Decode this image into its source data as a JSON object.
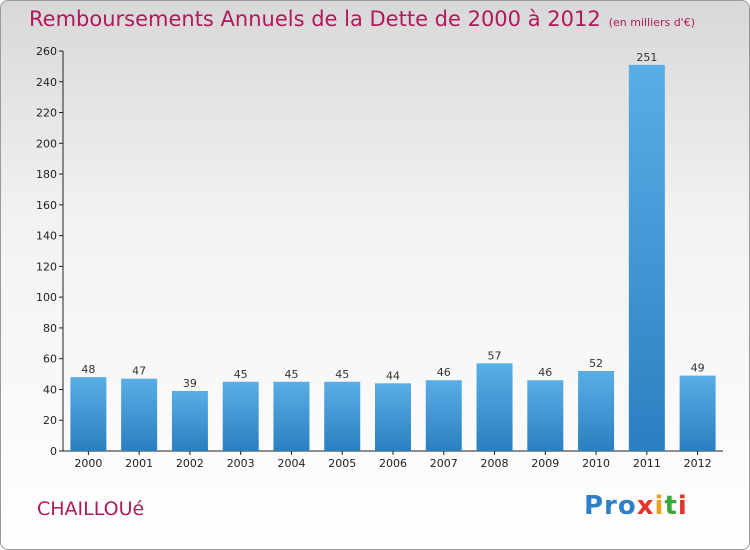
{
  "header": {
    "title": "Remboursements Annuels de la Dette de 2000 à 2012",
    "subtitle": "(en milliers d'€)"
  },
  "footer": {
    "commune": "CHAILLOUé",
    "logo": "Proxiti"
  },
  "colors": {
    "bar_light": "#5aaee6",
    "bar_dark": "#2a7fc0",
    "title": "#b1195c"
  },
  "chart_data": {
    "type": "bar",
    "title": "Remboursements Annuels de la Dette de 2000 à 2012",
    "subtitle": "(en milliers d'€)",
    "categories": [
      "2000",
      "2001",
      "2002",
      "2003",
      "2004",
      "2005",
      "2006",
      "2007",
      "2008",
      "2009",
      "2010",
      "2011",
      "2012"
    ],
    "values": [
      48,
      47,
      39,
      45,
      45,
      45,
      44,
      46,
      57,
      46,
      52,
      251,
      49
    ],
    "ylim": [
      0,
      260
    ],
    "yticks": [
      0,
      20,
      40,
      60,
      80,
      100,
      120,
      140,
      160,
      180,
      200,
      220,
      240,
      260
    ],
    "grid": false,
    "xlabel": "",
    "ylabel": ""
  }
}
